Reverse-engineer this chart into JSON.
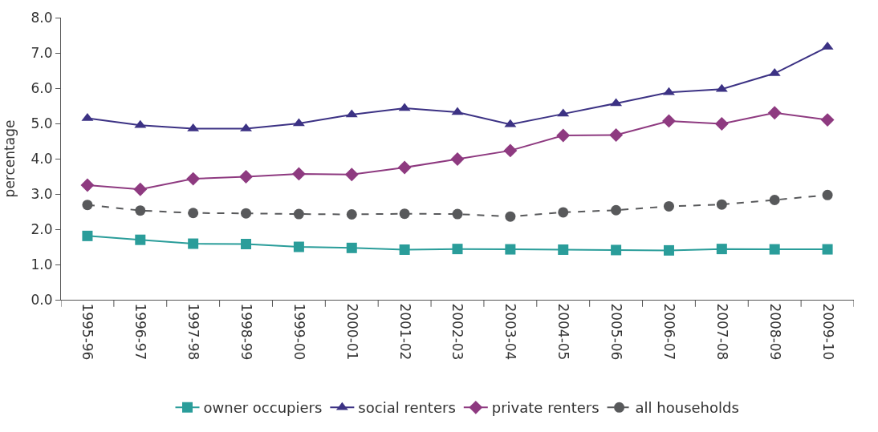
{
  "chart_data": {
    "type": "line",
    "ylabel": "percentage",
    "categories": [
      "1995-96",
      "1996-97",
      "1997-98",
      "1998-99",
      "1999-00",
      "2000-01",
      "2001-02",
      "2002-03",
      "2003-04",
      "2004-05",
      "2005-06",
      "2006-07",
      "2007-08",
      "2008-09",
      "2009-10"
    ],
    "series": [
      {
        "name": "owner occupiers",
        "color": "#2a9d9a",
        "marker": "square",
        "line_style": "solid",
        "values": [
          1.81,
          1.7,
          1.59,
          1.58,
          1.5,
          1.47,
          1.42,
          1.44,
          1.43,
          1.42,
          1.41,
          1.4,
          1.44,
          1.43,
          1.43
        ]
      },
      {
        "name": "social renters",
        "color": "#3c3284",
        "marker": "triangle",
        "line_style": "solid",
        "values": [
          5.15,
          4.95,
          4.85,
          4.85,
          5.0,
          5.25,
          5.43,
          5.32,
          4.97,
          5.27,
          5.57,
          5.88,
          5.97,
          6.42,
          7.17
        ]
      },
      {
        "name": "private renters",
        "color": "#8e3a80",
        "marker": "diamond",
        "line_style": "solid",
        "values": [
          3.25,
          3.13,
          3.43,
          3.49,
          3.57,
          3.55,
          3.75,
          3.99,
          4.23,
          4.66,
          4.67,
          5.07,
          4.99,
          5.3,
          5.1
        ]
      },
      {
        "name": "all households",
        "color": "#58595b",
        "marker": "circle",
        "line_style": "dashed",
        "values": [
          2.69,
          2.53,
          2.46,
          2.45,
          2.43,
          2.42,
          2.44,
          2.43,
          2.36,
          2.48,
          2.54,
          2.65,
          2.7,
          2.83,
          2.97
        ]
      }
    ],
    "ylim": [
      0,
      8
    ],
    "yticks": [
      {
        "value": 0,
        "label": "0.0"
      },
      {
        "value": 1,
        "label": "1.0"
      },
      {
        "value": 2,
        "label": "2.0"
      },
      {
        "value": 3,
        "label": "3.0"
      },
      {
        "value": 4,
        "label": "4.0"
      },
      {
        "value": 5,
        "label": "5.0"
      },
      {
        "value": 6,
        "label": "6.0"
      },
      {
        "value": 7,
        "label": "7.0"
      },
      {
        "value": 8,
        "label": "8.0"
      }
    ],
    "legend": "bottom"
  }
}
